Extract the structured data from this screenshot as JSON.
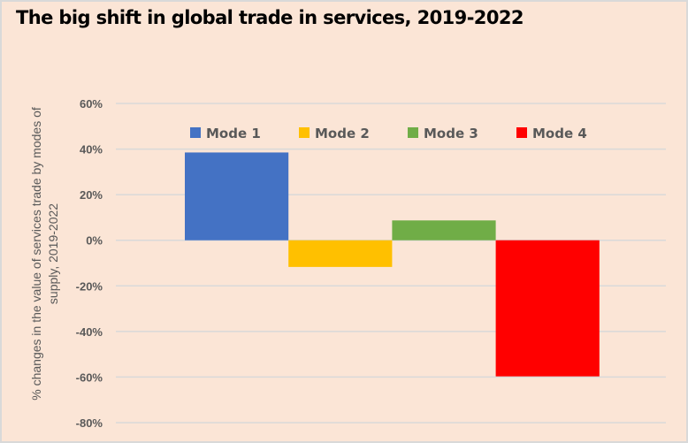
{
  "chart_data": {
    "type": "bar",
    "title": "The big shift in global trade in services, 2019-2022",
    "xlabel": "",
    "ylabel_lines": [
      "% changes in the value of services trade by modes of",
      "supply, 2019-2022"
    ],
    "ylabel": "% changes in the value of services trade by modes of supply, 2019-2022",
    "categories": [
      "Mode 1",
      "Mode 2",
      "Mode 3",
      "Mode 4"
    ],
    "series": [
      {
        "name": "Mode 1",
        "values": [
          38.5
        ],
        "color": "#4472c4"
      },
      {
        "name": "Mode 2",
        "values": [
          -11.7
        ],
        "color": "#ffc000"
      },
      {
        "name": "Mode 3",
        "values": [
          8.7
        ],
        "color": "#70ad47"
      },
      {
        "name": "Mode 4",
        "values": [
          -59.7
        ],
        "color": "#ff0000"
      }
    ],
    "ylim": [
      -80,
      60
    ],
    "yticks": [
      60,
      40,
      20,
      0,
      -20,
      -40,
      -60,
      -80
    ],
    "ytick_labels": [
      "60%",
      "40%",
      "20%",
      "0%",
      "-20%",
      "-40%",
      "-60%",
      "-80%"
    ],
    "grid": true,
    "legend_position": "top"
  },
  "colors": {
    "background": "#fbe5d6",
    "frame": "#d9d9d9",
    "gridline": "#d9d9d9",
    "text": "#595959"
  }
}
